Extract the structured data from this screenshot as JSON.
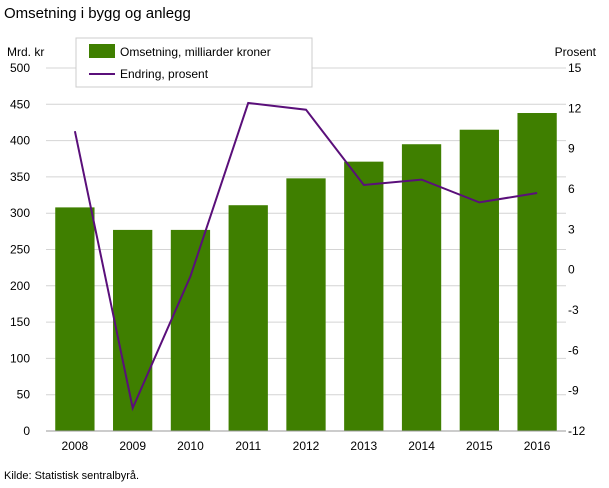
{
  "title": "Omsetning i bygg og anlegg",
  "source": "Kilde: Statistisk sentralbyrå.",
  "colors": {
    "bar": "#3f7f00",
    "line": "#5a0f7a",
    "grid": "#d4d4d4",
    "axis": "#999999"
  },
  "chart_data": {
    "type": "bar",
    "title": "Omsetning i bygg og anlegg",
    "categories": [
      "2008",
      "2009",
      "2010",
      "2011",
      "2012",
      "2013",
      "2014",
      "2015",
      "2016"
    ],
    "ylabel": "Mrd. kr",
    "y2label": "Prosent",
    "ylim": [
      0,
      500
    ],
    "y2lim": [
      -12,
      15
    ],
    "yticks": [
      "0",
      "50",
      "100",
      "150",
      "200",
      "250",
      "300",
      "350",
      "400",
      "450",
      "500"
    ],
    "y2ticks": [
      "-12",
      "-9",
      "-6",
      "-3",
      "0",
      "3",
      "6",
      "9",
      "12",
      "15"
    ],
    "grid": true,
    "legend_position": "top-left",
    "series": [
      {
        "name": "Omsetning, milliarder kroner",
        "type": "bar",
        "axis": "left",
        "values": [
          308,
          277,
          277,
          311,
          348,
          371,
          395,
          415,
          438
        ]
      },
      {
        "name": "Endring, prosent",
        "type": "line",
        "axis": "right",
        "values": [
          10.3,
          -10.3,
          -0.5,
          12.4,
          11.9,
          6.3,
          6.7,
          5.0,
          5.7
        ]
      }
    ]
  }
}
